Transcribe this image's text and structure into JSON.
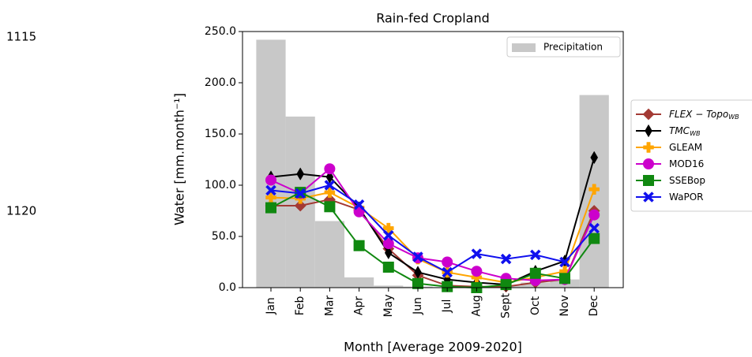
{
  "line_numbers": [
    "1115",
    "1120"
  ],
  "chart_data": {
    "type": "bar_line",
    "title": "Rain-fed Cropland",
    "x_label": "Month [Average 2009-2020]",
    "y_label": "Water [mm.month⁻¹]",
    "categories": [
      "Jan",
      "Feb",
      "Mar",
      "Apr",
      "May",
      "Jun",
      "Jul",
      "Aug",
      "Sept",
      "Oct",
      "Nov",
      "Dec"
    ],
    "ylim": [
      0,
      250
    ],
    "yticks": [
      {
        "value": 0,
        "label": "0.0"
      },
      {
        "value": 50,
        "label": "50.0"
      },
      {
        "value": 100,
        "label": "100.0"
      },
      {
        "value": 150,
        "label": "150.0"
      },
      {
        "value": 200,
        "label": "200.0"
      },
      {
        "value": 250,
        "label": "250.0"
      }
    ],
    "bars": {
      "name": "Precipitation",
      "color": "#c8c8c8",
      "values": [
        242,
        167,
        65,
        10,
        2,
        1,
        0.5,
        1,
        2,
        5,
        8,
        188
      ]
    },
    "series": [
      {
        "name": "FLEX − Topo",
        "subscript": "WB",
        "italic": true,
        "color": "#a33a34",
        "marker": "diamond",
        "values": [
          80,
          80,
          86,
          76,
          38,
          12,
          2,
          1,
          1,
          5,
          8,
          75
        ]
      },
      {
        "name": "TMC",
        "subscript": "WB",
        "italic": true,
        "color": "#000000",
        "marker": "thin_diamond",
        "values": [
          108,
          111,
          108,
          78,
          34,
          15,
          8,
          5,
          3,
          16,
          26,
          127
        ]
      },
      {
        "name": "GLEAM",
        "color": "#ffa500",
        "marker": "plus",
        "values": [
          88,
          87,
          93,
          78,
          58,
          28,
          15,
          10,
          5,
          10,
          16,
          96
        ]
      },
      {
        "name": "MOD16",
        "color": "#cc00cc",
        "marker": "circle",
        "values": [
          105,
          92,
          116,
          74,
          43,
          29,
          25,
          16,
          9,
          7,
          8,
          71
        ]
      },
      {
        "name": "SSEBop",
        "color": "#108810",
        "marker": "square",
        "values": [
          78,
          93,
          79,
          41,
          20,
          4,
          1,
          0,
          3,
          14,
          9,
          48
        ]
      },
      {
        "name": "WaPOR",
        "color": "#1010ee",
        "marker": "x",
        "values": [
          95,
          92,
          100,
          81,
          51,
          30,
          15,
          33,
          28,
          32,
          25,
          58
        ]
      }
    ]
  }
}
